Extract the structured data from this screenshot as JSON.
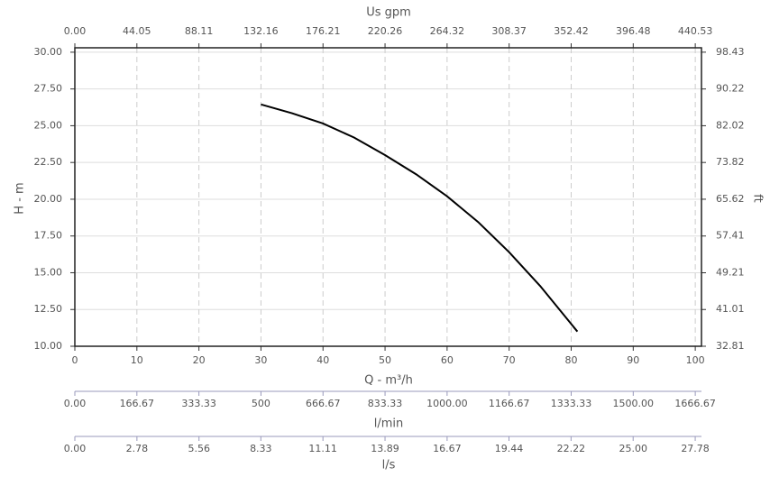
{
  "chart_data": {
    "type": "line",
    "xlabel": "Q - m³/h",
    "ylabel": "H - m",
    "y2label": "ft",
    "x": [
      30,
      35,
      40,
      45,
      50,
      55,
      60,
      65,
      70,
      75,
      81
    ],
    "values": [
      26.45,
      25.85,
      25.15,
      24.2,
      23.0,
      21.7,
      20.2,
      18.45,
      16.4,
      14.1,
      11.0
    ],
    "color": "#000000",
    "xlim": [
      0,
      101
    ],
    "xticks": [
      0,
      10,
      20,
      30,
      40,
      50,
      60,
      70,
      80,
      90,
      100
    ],
    "ylim": [
      10,
      30.3
    ],
    "yticks": [
      {
        "value": 10,
        "label": "10.00"
      },
      {
        "value": 12.5,
        "label": "12.50"
      },
      {
        "value": 15,
        "label": "15.00"
      },
      {
        "value": 17.5,
        "label": "17.50"
      },
      {
        "value": 20,
        "label": "20.00"
      },
      {
        "value": 22.5,
        "label": "22.50"
      },
      {
        "value": 25,
        "label": "25.00"
      },
      {
        "value": 27.5,
        "label": "27.50"
      },
      {
        "value": 30,
        "label": "30.00"
      }
    ],
    "y2lim": [
      32.81,
      99.41
    ],
    "y2ticks": [
      32.81,
      41.01,
      49.21,
      57.41,
      65.62,
      73.82,
      82.02,
      90.22,
      98.43
    ],
    "grid": true,
    "top_axis": {
      "label": "Us gpm",
      "lim": [
        0,
        444.94
      ],
      "ticks": [
        {
          "value": 0,
          "label": "0.00"
        },
        44.05,
        88.11,
        132.16,
        176.21,
        220.26,
        264.32,
        308.37,
        352.42,
        396.48,
        440.53
      ]
    },
    "lpm_axis": {
      "label": "l/min",
      "lim": [
        0,
        1683.33
      ],
      "ticks": [
        {
          "value": 0,
          "label": "0.00"
        },
        166.67,
        333.33,
        500.0,
        666.67,
        833.33,
        {
          "value": 1000,
          "label": "1000.00"
        },
        1166.67,
        1333.33,
        {
          "value": 1500,
          "label": "1500.00"
        },
        1666.67
      ]
    },
    "lps_axis": {
      "label": "l/s",
      "lim": [
        0,
        28.06
      ],
      "ticks": [
        {
          "value": 0,
          "label": "0.00"
        },
        2.78,
        5.56,
        8.33,
        11.11,
        13.89,
        16.67,
        19.44,
        22.22,
        {
          "value": 25,
          "label": "25.00"
        },
        27.78
      ]
    }
  }
}
